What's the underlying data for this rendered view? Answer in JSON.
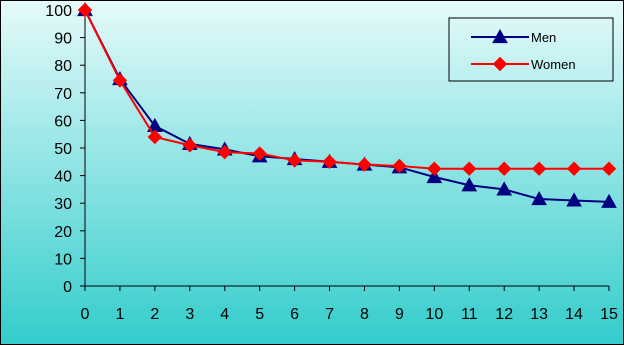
{
  "chart_data": {
    "type": "line",
    "x": [
      0,
      1,
      2,
      3,
      4,
      5,
      6,
      7,
      8,
      9,
      10,
      11,
      12,
      13,
      14,
      15
    ],
    "series": [
      {
        "name": "Men",
        "color": "#000080",
        "marker": "triangle",
        "values": [
          100,
          75,
          58,
          51.5,
          49.5,
          47,
          46,
          45,
          44,
          43,
          39.5,
          36.5,
          35,
          31.5,
          31,
          30.5
        ]
      },
      {
        "name": "Women",
        "color": "#ff0000",
        "marker": "diamond",
        "values": [
          100,
          74.5,
          54,
          51,
          48.5,
          48,
          45.5,
          45,
          44,
          43.5,
          42.5,
          42.5,
          42.5,
          42.5,
          42.5,
          42.5
        ]
      }
    ],
    "ylim": [
      0,
      100
    ],
    "yticks": [
      "0",
      "10",
      "20",
      "30",
      "40",
      "50",
      "60",
      "70",
      "80",
      "90",
      "100"
    ],
    "xticks": [
      "0",
      "1",
      "2",
      "3",
      "4",
      "5",
      "6",
      "7",
      "8",
      "9",
      "10",
      "11",
      "12",
      "13",
      "14",
      "15"
    ],
    "grid": false,
    "legend_position": "top-right",
    "colors": {
      "background_top": "#e6fafa",
      "background_bottom": "#33cccc",
      "frame": "#000000"
    }
  }
}
